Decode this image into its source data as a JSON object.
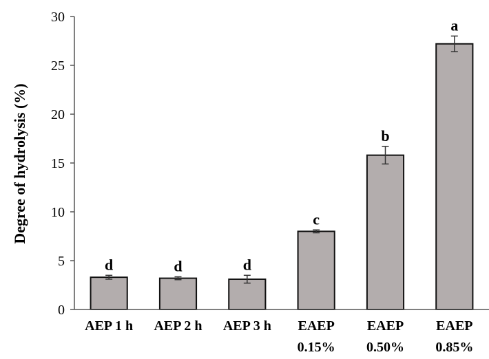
{
  "chart_data": {
    "type": "bar",
    "ylabel": "Degree of hydrolysis (%)",
    "xlabel": "",
    "ylim": [
      0,
      30
    ],
    "yticks": [
      0,
      5,
      10,
      15,
      20,
      25,
      30
    ],
    "grid": false,
    "categories": [
      [
        "AEP 1 h"
      ],
      [
        "AEP 2 h"
      ],
      [
        "AEP 3 h"
      ],
      [
        "EAEP",
        "0.15%"
      ],
      [
        "EAEP",
        "0.50%"
      ],
      [
        "EAEP",
        "0.85%"
      ]
    ],
    "values": [
      3.3,
      3.2,
      3.1,
      8.0,
      15.8,
      27.2
    ],
    "errors": [
      0.2,
      0.15,
      0.4,
      0.15,
      0.9,
      0.8
    ],
    "significance": [
      "d",
      "d",
      "d",
      "c",
      "b",
      "a"
    ],
    "colors": {
      "bar_fill": "#b3adad",
      "bar_stroke": "#111111",
      "axis": "#555555"
    }
  }
}
